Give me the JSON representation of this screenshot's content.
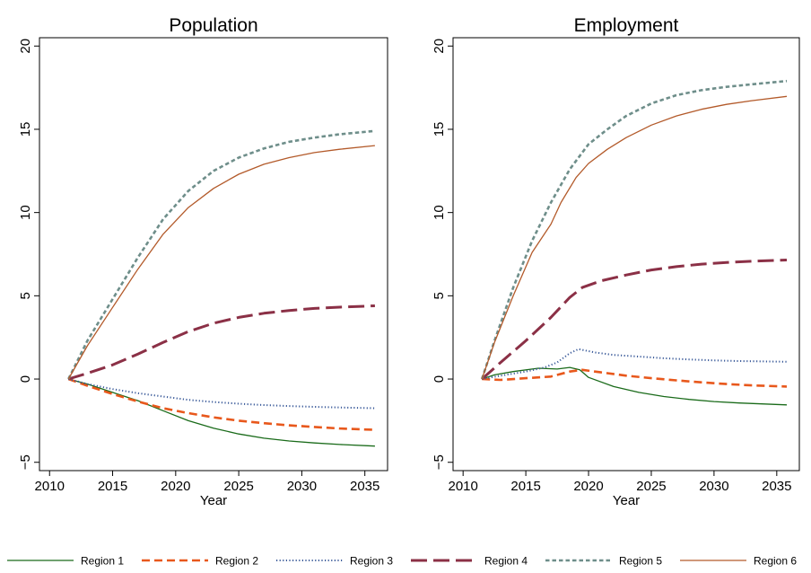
{
  "chart_data": [
    {
      "type": "line",
      "title": "Population",
      "xlabel": "Year",
      "ylabel": "",
      "xlim": [
        2009.2,
        2036.8
      ],
      "ylim": [
        -5.5,
        20.5
      ],
      "xticks": [
        2010,
        2015,
        2020,
        2025,
        2030,
        2035
      ],
      "yticks": [
        -5,
        0,
        5,
        10,
        15,
        20
      ],
      "grid": false,
      "series": [
        {
          "name": "Region 1",
          "x": [
            2011.5,
            2013,
            2015,
            2017,
            2019,
            2021,
            2023,
            2025,
            2027,
            2029,
            2031,
            2033,
            2035.8
          ],
          "values": [
            0,
            -0.3,
            -0.8,
            -1.3,
            -1.9,
            -2.5,
            -2.95,
            -3.3,
            -3.55,
            -3.72,
            -3.84,
            -3.93,
            -4.03
          ]
        },
        {
          "name": "Region 2",
          "x": [
            2011.5,
            2013,
            2015,
            2017,
            2019,
            2021,
            2023,
            2025,
            2027,
            2029,
            2031,
            2033,
            2035.8
          ],
          "values": [
            0,
            -0.4,
            -0.9,
            -1.35,
            -1.75,
            -2.05,
            -2.3,
            -2.5,
            -2.65,
            -2.78,
            -2.88,
            -2.97,
            -3.05
          ]
        },
        {
          "name": "Region 3",
          "x": [
            2011.5,
            2013,
            2015,
            2017,
            2019,
            2021,
            2023,
            2025,
            2027,
            2029,
            2031,
            2033,
            2035.8
          ],
          "values": [
            0,
            -0.3,
            -0.6,
            -0.85,
            -1.05,
            -1.25,
            -1.38,
            -1.48,
            -1.56,
            -1.62,
            -1.67,
            -1.71,
            -1.75
          ]
        },
        {
          "name": "Region 4",
          "x": [
            2011.5,
            2013,
            2015,
            2017,
            2019,
            2021,
            2023,
            2025,
            2027,
            2029,
            2031,
            2033,
            2035.8
          ],
          "values": [
            0,
            0.35,
            0.85,
            1.5,
            2.2,
            2.85,
            3.35,
            3.7,
            3.95,
            4.12,
            4.24,
            4.32,
            4.4
          ]
        },
        {
          "name": "Region 5",
          "x": [
            2011.5,
            2013,
            2015,
            2017,
            2019,
            2021,
            2023,
            2025,
            2027,
            2029,
            2031,
            2033,
            2035.8
          ],
          "values": [
            0,
            2.3,
            4.8,
            7.3,
            9.6,
            11.3,
            12.5,
            13.3,
            13.85,
            14.25,
            14.5,
            14.7,
            14.9
          ]
        },
        {
          "name": "Region 6",
          "x": [
            2011.5,
            2013,
            2015,
            2017,
            2019,
            2021,
            2023,
            2025,
            2027,
            2029,
            2031,
            2033,
            2035.8
          ],
          "values": [
            0,
            2.0,
            4.3,
            6.6,
            8.7,
            10.3,
            11.45,
            12.3,
            12.9,
            13.3,
            13.6,
            13.8,
            14.02
          ]
        }
      ]
    },
    {
      "type": "line",
      "title": "Employment",
      "xlabel": "Year",
      "ylabel": "",
      "xlim": [
        2009.2,
        2036.8
      ],
      "ylim": [
        -5.5,
        20.5
      ],
      "xticks": [
        2010,
        2015,
        2020,
        2025,
        2030,
        2035
      ],
      "yticks": [
        -5,
        0,
        5,
        10,
        15,
        20
      ],
      "grid": false,
      "series": [
        {
          "name": "Region 1",
          "x": [
            2011.5,
            2012.5,
            2014,
            2016,
            2017.5,
            2018.5,
            2019.3,
            2020,
            2022,
            2024,
            2026,
            2028,
            2030,
            2032,
            2035.8
          ],
          "values": [
            0,
            0.25,
            0.45,
            0.65,
            0.6,
            0.7,
            0.55,
            0.1,
            -0.45,
            -0.8,
            -1.05,
            -1.22,
            -1.35,
            -1.44,
            -1.55
          ]
        },
        {
          "name": "Region 2",
          "x": [
            2011.5,
            2013,
            2015,
            2017,
            2018.5,
            2019.5,
            2021,
            2023,
            2025,
            2027,
            2029,
            2031,
            2033,
            2035.8
          ],
          "values": [
            0,
            -0.05,
            0.05,
            0.15,
            0.45,
            0.55,
            0.4,
            0.2,
            0.05,
            -0.08,
            -0.2,
            -0.3,
            -0.38,
            -0.45
          ]
        },
        {
          "name": "Region 3",
          "x": [
            2011.5,
            2013,
            2015,
            2016.5,
            2017.5,
            2018.5,
            2019.2,
            2020.5,
            2022,
            2024,
            2026,
            2028,
            2030,
            2032,
            2035.8
          ],
          "values": [
            0,
            0.2,
            0.45,
            0.7,
            1.0,
            1.55,
            1.8,
            1.6,
            1.45,
            1.35,
            1.25,
            1.18,
            1.12,
            1.08,
            1.04
          ]
        },
        {
          "name": "Region 4",
          "x": [
            2011.5,
            2013,
            2015,
            2017,
            2018.5,
            2019.5,
            2021,
            2023,
            2025,
            2027,
            2029,
            2031,
            2033,
            2035.8
          ],
          "values": [
            0,
            1.0,
            2.3,
            3.7,
            4.9,
            5.5,
            5.9,
            6.25,
            6.55,
            6.75,
            6.9,
            7.0,
            7.08,
            7.15
          ]
        },
        {
          "name": "Region 5",
          "x": [
            2011.5,
            2012.5,
            2014,
            2015.5,
            2017,
            2018.5,
            2020,
            2021.5,
            2023,
            2025,
            2027,
            2029,
            2031,
            2033,
            2035.8
          ],
          "values": [
            0,
            2.3,
            5.5,
            8.3,
            10.6,
            12.6,
            14.1,
            15.0,
            15.8,
            16.55,
            17.05,
            17.35,
            17.55,
            17.7,
            17.9
          ]
        },
        {
          "name": "Region 6",
          "x": [
            2011.5,
            2012.5,
            2014,
            2015.5,
            2017,
            2017.8,
            2019,
            2020,
            2021.5,
            2023,
            2025,
            2027,
            2029,
            2031,
            2033,
            2035.8
          ],
          "values": [
            0,
            2.2,
            5.0,
            7.6,
            9.3,
            10.6,
            12.1,
            12.95,
            13.8,
            14.5,
            15.25,
            15.8,
            16.2,
            16.5,
            16.72,
            16.98
          ]
        }
      ]
    }
  ],
  "legend": {
    "placement": "bottom",
    "entries": [
      {
        "label": "Region 1",
        "color": "#1a6b1a",
        "dash": "solid",
        "width": 1.3
      },
      {
        "label": "Region 2",
        "color": "#e8581c",
        "dash": "9,5",
        "width": 2.6
      },
      {
        "label": "Region 3",
        "color": "#3b5b9a",
        "dash": "1.2,2.4",
        "width": 2.0
      },
      {
        "label": "Region 4",
        "color": "#8b3046",
        "dash": "18,7",
        "width": 3.0
      },
      {
        "label": "Region 5",
        "color": "#6e8e8a",
        "dash": "4.5,3",
        "width": 2.6
      },
      {
        "label": "Region 6",
        "color": "#b35a2a",
        "dash": "solid",
        "width": 1.3
      }
    ]
  }
}
